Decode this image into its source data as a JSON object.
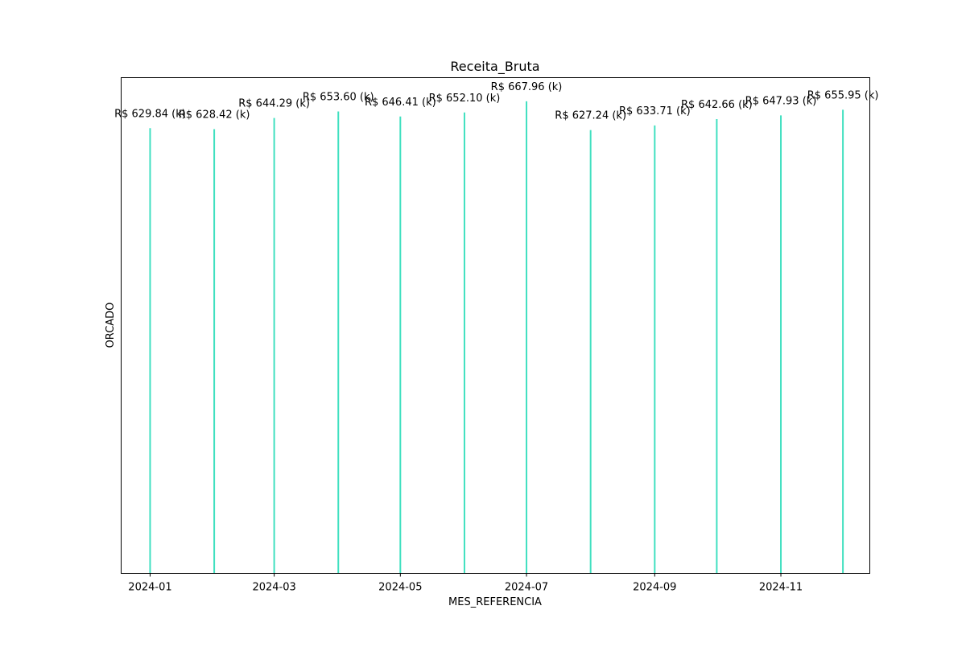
{
  "chart_data": {
    "type": "bar",
    "title": "Receita_Bruta",
    "xlabel": "MES_REFERENCIA",
    "ylabel": "ORCADO",
    "x": [
      "2024-01-01",
      "2024-02-01",
      "2024-03-01",
      "2024-04-01",
      "2024-05-01",
      "2024-06-01",
      "2024-07-01",
      "2024-08-01",
      "2024-09-01",
      "2024-10-01",
      "2024-11-01",
      "2024-12-01"
    ],
    "values": [
      629.84,
      628.42,
      644.29,
      653.6,
      646.41,
      652.1,
      667.96,
      627.24,
      633.71,
      642.66,
      647.93,
      655.95
    ],
    "data_labels": [
      "R$ 629.84 (k)",
      "R$ 628.42 (k)",
      "R$ 644.29 (k)",
      "R$ 653.60 (k)",
      "R$ 646.41 (k)",
      "R$ 652.10 (k)",
      "R$ 667.96 (k)",
      "R$ 627.24 (k)",
      "R$ 633.71 (k)",
      "R$ 642.66 (k)",
      "R$ 647.93 (k)",
      "R$ 655.95 (k)"
    ],
    "xtick_labels": [
      "2024-01",
      "2024-03",
      "2024-05",
      "2024-07",
      "2024-09",
      "2024-11"
    ],
    "xtick_dates": [
      "2024-01-01",
      "2024-03-01",
      "2024-05-01",
      "2024-07-01",
      "2024-09-01",
      "2024-11-01"
    ],
    "xlim": [
      "2023-12-18",
      "2024-12-14"
    ],
    "ylim": [
      0,
      701.35
    ],
    "yticks_visible": false,
    "grid": false,
    "color": "#40e0c0"
  }
}
